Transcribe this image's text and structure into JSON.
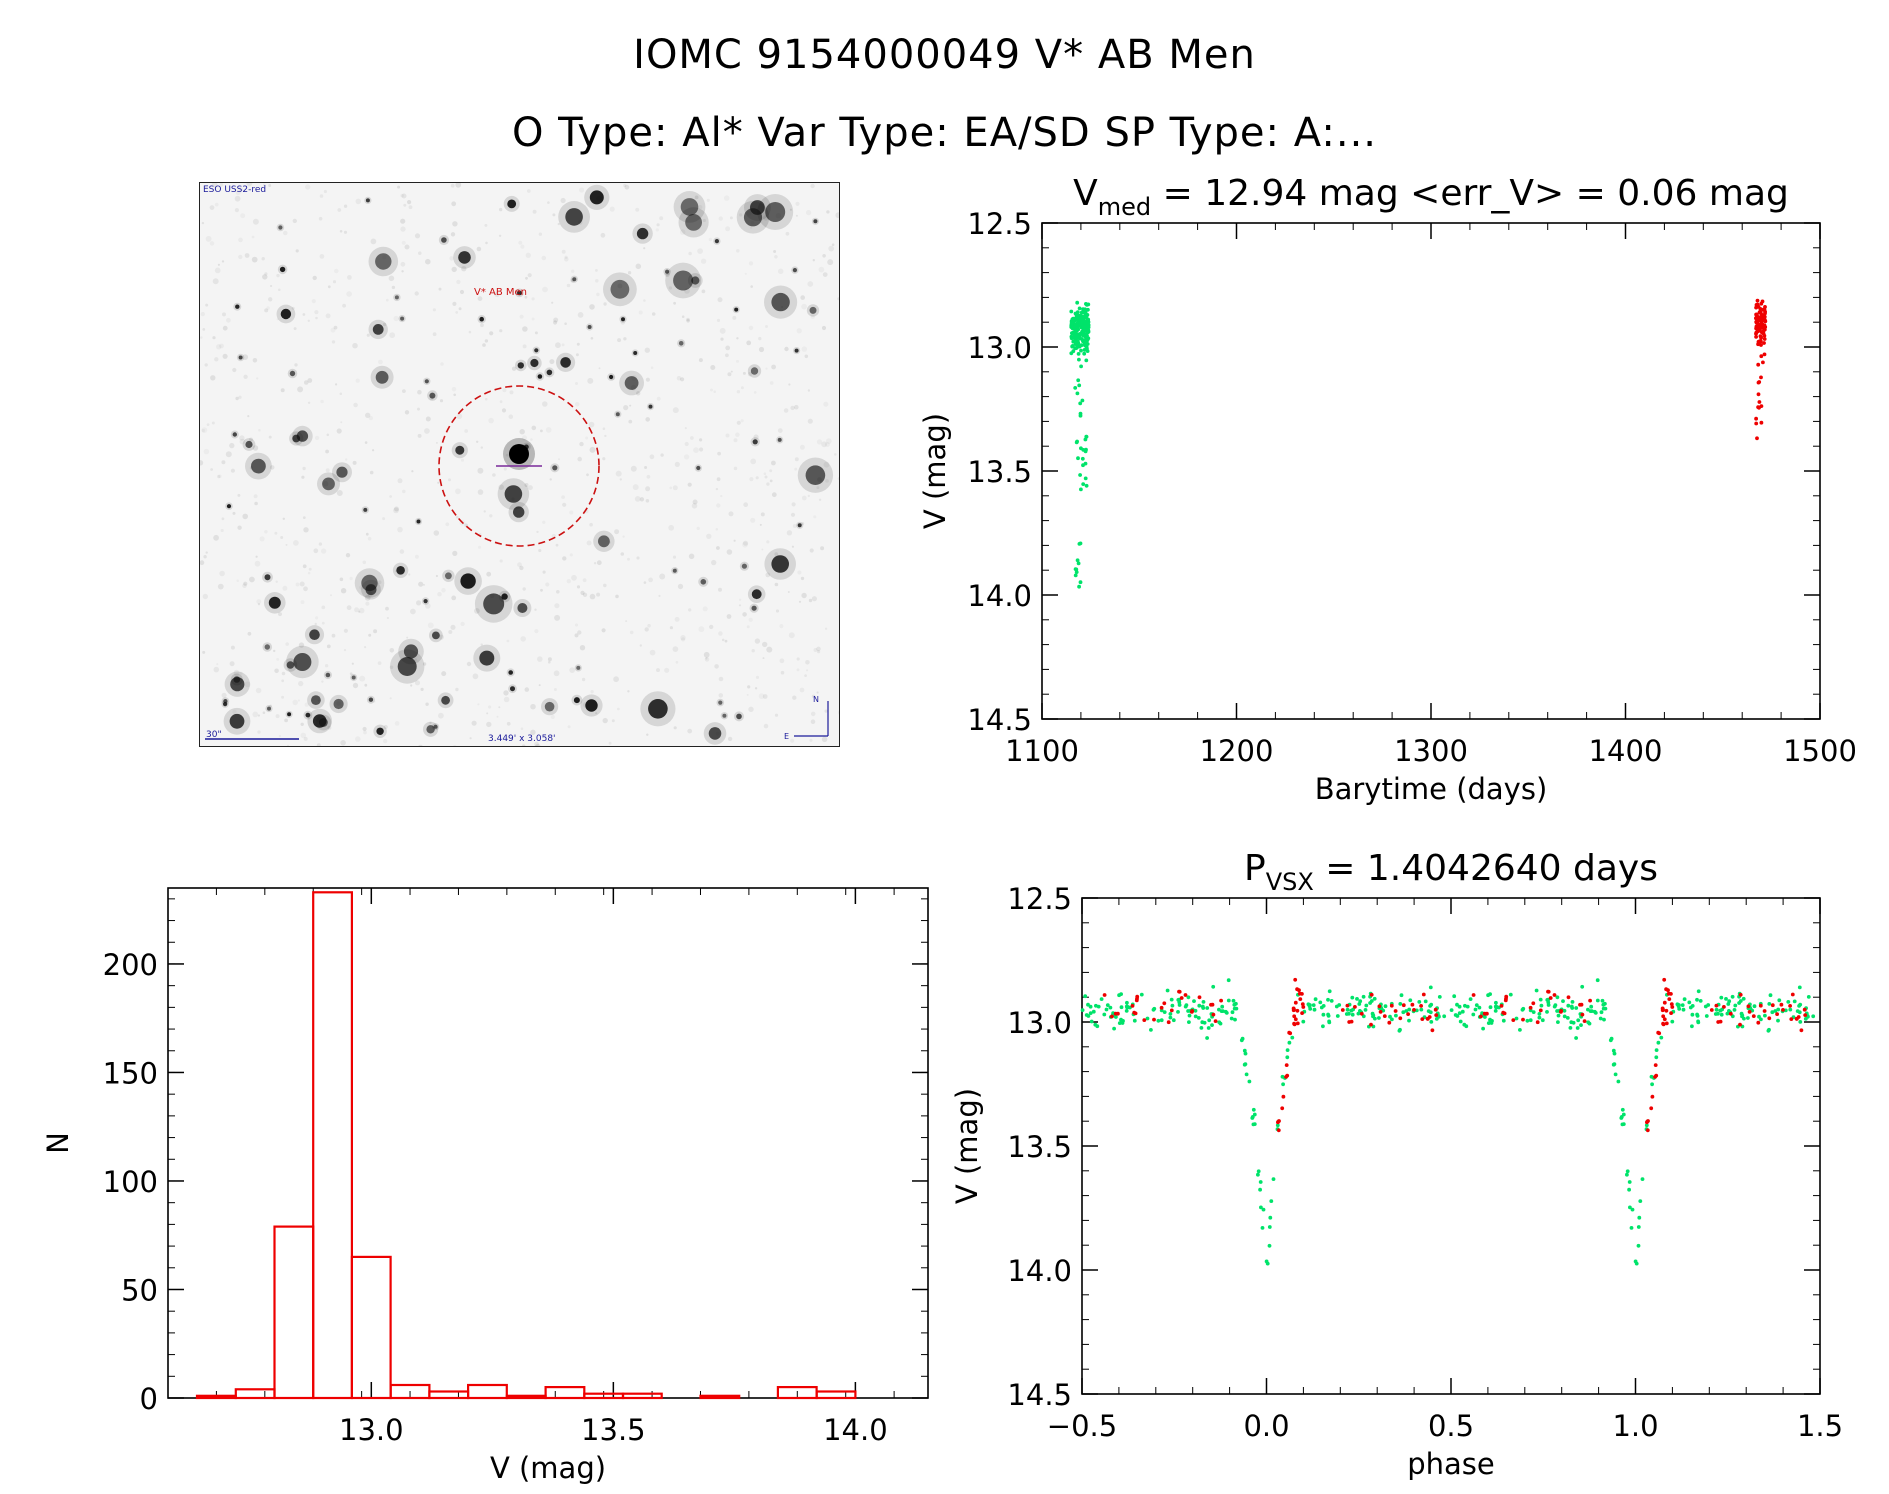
{
  "header": {
    "title_line1": "IOMC 9154000049    V* AB Men",
    "title_line2": "O Type: Al*  Var Type: EA/SD  SP Type: A:..."
  },
  "finder_chart": {
    "survey_label": "ESO USS2-red",
    "object_label": "V* AB Men",
    "scale_label": "30\"",
    "fov_label": "3.449' x 3.058'",
    "north_label": "N",
    "east_label": "E",
    "colors": {
      "circle": "#cc1111",
      "labels": "#1a1a9a",
      "marker": "#7a2a9a"
    }
  },
  "colors": {
    "green": "#00e36a",
    "red": "#ee0000",
    "hist": "#ee0000"
  },
  "chart_data": [
    {
      "id": "lightcurve",
      "type": "scatter",
      "title_main": "V",
      "title_sub": "med",
      "title_rest": " = 12.94 mag <err_V> = 0.06 mag",
      "xlabel": "Barytime (days)",
      "ylabel": "V (mag)",
      "xlim": [
        1100,
        1500
      ],
      "ylim": [
        14.5,
        12.5
      ],
      "xticks": [
        "1100",
        "1200",
        "1300",
        "1400",
        "1500"
      ],
      "yticks": [
        "12.5",
        "13.0",
        "13.5",
        "14.0",
        "14.5"
      ],
      "series": [
        {
          "name": "green",
          "color": "#00e36a",
          "clusters": [
            {
              "xmin": 1115,
              "xmax": 1124,
              "ymean": 12.93,
              "ysd": 0.045,
              "n": 190
            },
            {
              "xmin": 1117,
              "xmax": 1123,
              "ymin": 12.98,
              "ymax": 13.58,
              "n": 30
            },
            {
              "xmin": 1117,
              "xmax": 1120,
              "ymin": 13.78,
              "ymax": 14.0,
              "n": 10
            }
          ]
        },
        {
          "name": "red",
          "color": "#ee0000",
          "clusters": [
            {
              "xmin": 1467,
              "xmax": 1472,
              "ymean": 12.91,
              "ysd": 0.04,
              "n": 90
            },
            {
              "xmin": 1467,
              "xmax": 1470,
              "ymin": 13.0,
              "ymax": 13.38,
              "n": 14
            }
          ]
        }
      ]
    },
    {
      "id": "histogram",
      "type": "bar",
      "xlabel": "V (mag)",
      "ylabel": "N",
      "xlim": [
        12.58,
        14.15
      ],
      "ylim": [
        0,
        235
      ],
      "xticks": [
        "13.0",
        "13.5",
        "14.0"
      ],
      "yticks": [
        "0",
        "50",
        "100",
        "150",
        "200"
      ],
      "bin_edges": [
        12.64,
        12.72,
        12.8,
        12.88,
        12.96,
        13.04,
        13.12,
        13.2,
        13.28,
        13.36,
        13.44,
        13.52,
        13.6,
        13.68,
        13.76,
        13.84,
        13.92,
        14.0,
        14.08
      ],
      "values": [
        1,
        4,
        79,
        233,
        65,
        6,
        3,
        6,
        1,
        5,
        2,
        2,
        0,
        1,
        0,
        5,
        3,
        0
      ]
    },
    {
      "id": "phased",
      "type": "scatter",
      "title_main": "P",
      "title_sub": "VSX",
      "title_rest": " = 1.4042640 days",
      "xlabel": "phase",
      "ylabel": "V (mag)",
      "xlim": [
        -0.5,
        1.5
      ],
      "ylim": [
        14.5,
        12.5
      ],
      "xticks": [
        "−0.5",
        "0.0",
        "0.5",
        "1.0",
        "1.5"
      ],
      "yticks": [
        "12.5",
        "13.0",
        "13.5",
        "14.0",
        "14.5"
      ],
      "period_days": 1.404264,
      "eclipse_depth": 1.05,
      "eclipse_halfwidth": 0.085,
      "series": [
        {
          "name": "green",
          "color": "#00e36a",
          "n": 240,
          "noise": 0.035,
          "phase_ranges": [
            [
              -0.5,
              0.5
            ]
          ]
        },
        {
          "name": "red",
          "color": "#ee0000",
          "n": 85,
          "noise": 0.035,
          "phase_ranges": [
            [
              -0.44,
              -0.1
            ],
            [
              0.03,
              0.1
            ],
            [
              0.2,
              0.46
            ]
          ]
        }
      ]
    }
  ]
}
